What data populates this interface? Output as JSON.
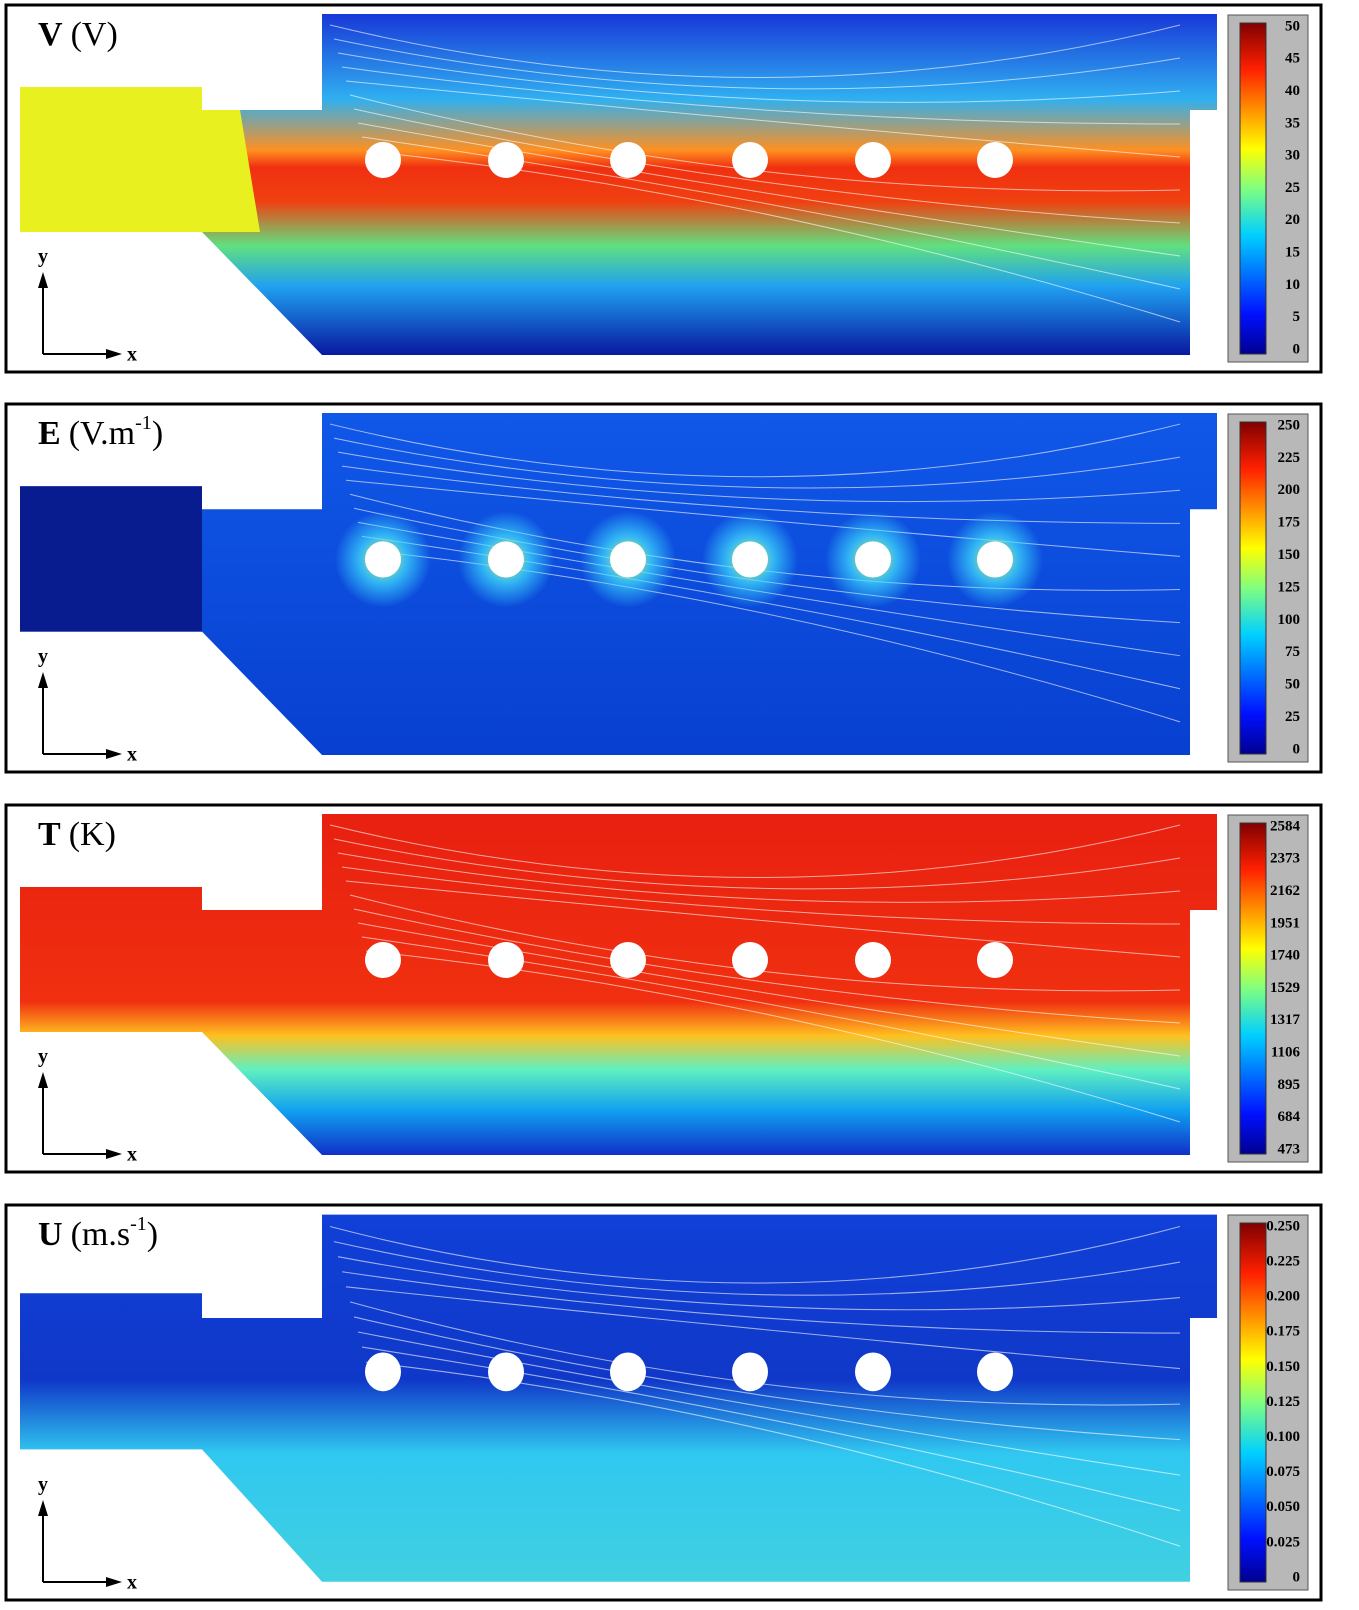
{
  "panels": [
    {
      "title": {
        "symbol": "V",
        "unit": "(V)"
      },
      "colorbar": [
        "0",
        "5",
        "10",
        "15",
        "20",
        "25",
        "30",
        "35",
        "40",
        "45",
        "50"
      ],
      "axes": {
        "y": "y",
        "x": "x"
      }
    },
    {
      "title": {
        "symbol": "E",
        "unit": "(V.m",
        "sup": "-1",
        "close": ")"
      },
      "colorbar": [
        "0",
        "25",
        "50",
        "75",
        "100",
        "125",
        "150",
        "175",
        "200",
        "225",
        "250"
      ],
      "axes": {
        "y": "y",
        "x": "x"
      }
    },
    {
      "title": {
        "symbol": "T",
        "unit": "(K)"
      },
      "colorbar": [
        "473",
        "684",
        "895",
        "1106",
        "1317",
        "1529",
        "1740",
        "1951",
        "2162",
        "2373",
        "2584"
      ],
      "axes": {
        "y": "y",
        "x": "x"
      }
    },
    {
      "title": {
        "symbol": "U",
        "unit": "(m.s",
        "sup": "-1",
        "close": ")"
      },
      "colorbar": [
        "0",
        "0.025",
        "0.050",
        "0.075",
        "0.100",
        "0.125",
        "0.150",
        "0.175",
        "0.200",
        "0.225",
        "0.250"
      ],
      "axes": {
        "y": "y",
        "x": "x"
      }
    }
  ]
}
